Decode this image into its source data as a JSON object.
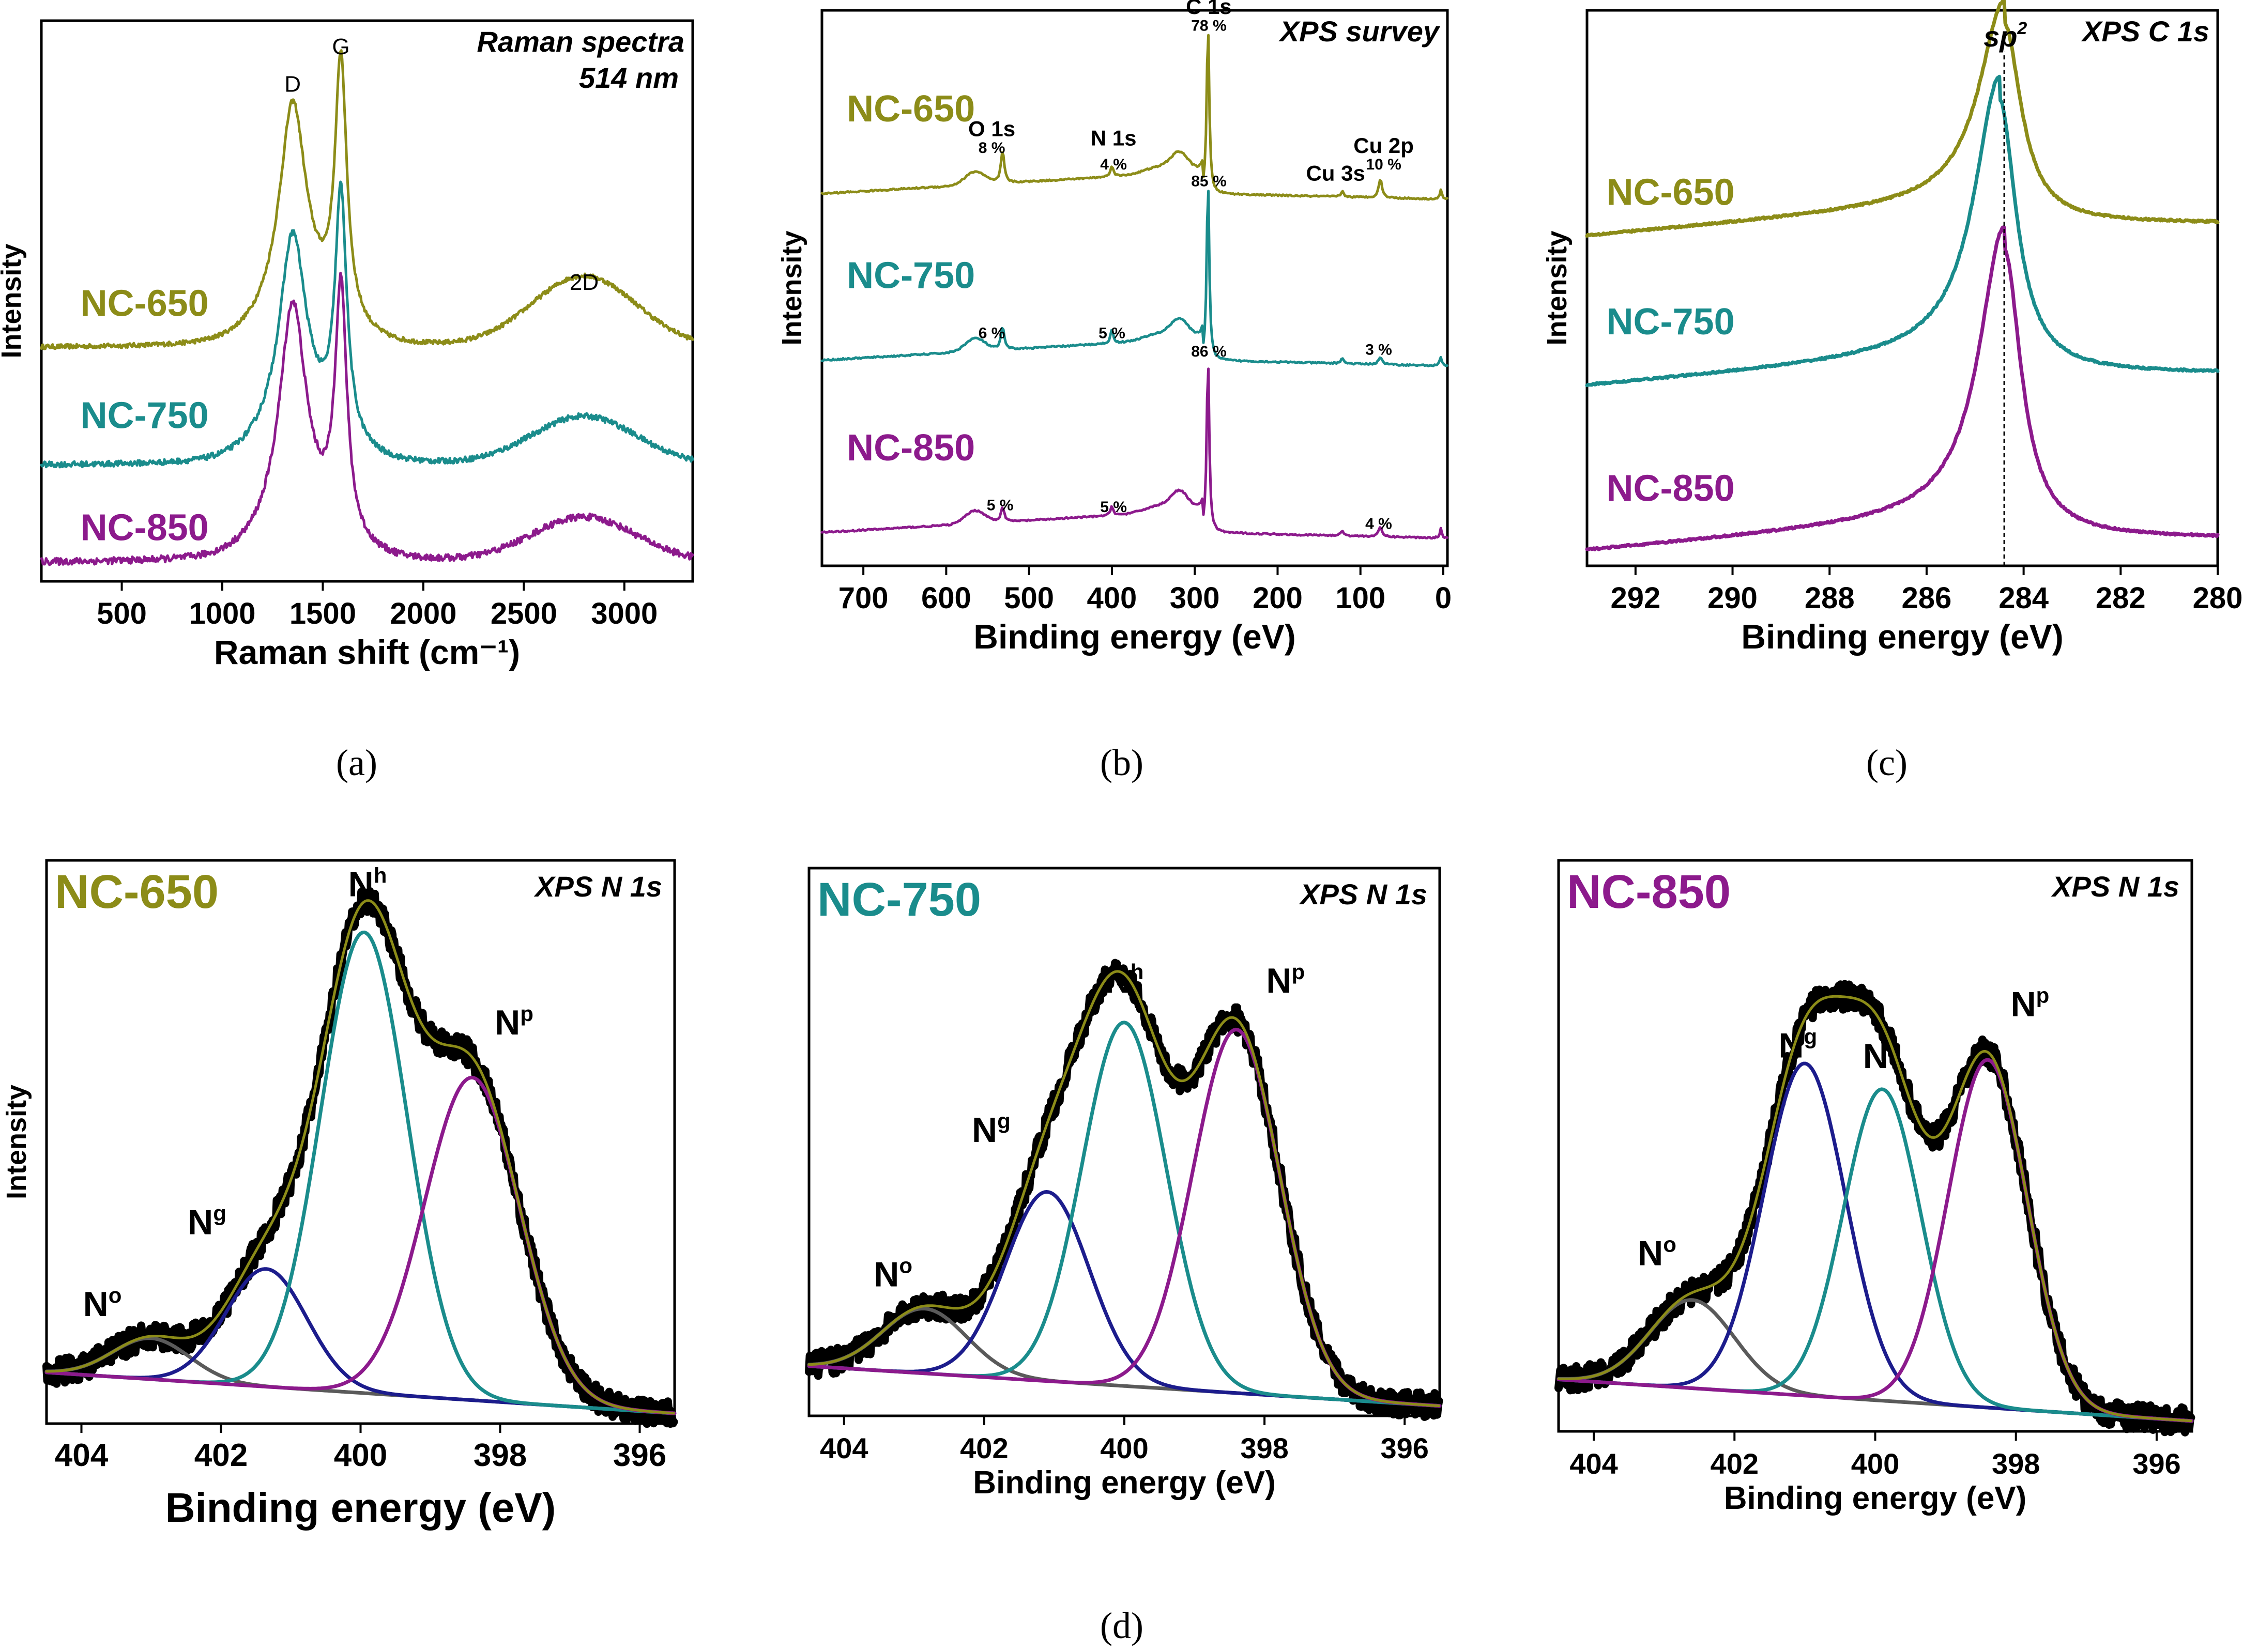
{
  "colors": {
    "nc650": "#8c8c18",
    "nc750": "#1a8c8c",
    "nc850": "#8c1a8c",
    "navy": "#1c1c8c",
    "gray": "#5a5a5a",
    "black": "#000000",
    "lightgray": "#9a9a9a"
  },
  "captions": {
    "a": "(a)",
    "b": "(b)",
    "c": "(c)",
    "d": "(d)"
  },
  "chart_data": [
    {
      "id": "a",
      "type": "line",
      "title": "Raman spectra",
      "subtitle": "514 nm",
      "xlabel": "Raman shift (cm⁻¹)",
      "ylabel": "Intensity",
      "xlim": [
        100,
        3340
      ],
      "ylim": [
        0,
        3.0
      ],
      "xticks": [
        500,
        1000,
        1500,
        2000,
        2500,
        3000
      ],
      "peak_labels": [
        {
          "text": "D",
          "x": 1350,
          "y": 2.62
        },
        {
          "text": "G",
          "x": 1590,
          "y": 2.82
        },
        {
          "text": "2D",
          "x": 2800,
          "y": 1.56
        }
      ],
      "series": [
        {
          "name": "NC-650",
          "color_key": "nc650",
          "offset": 1.25,
          "baseline": 0.0,
          "D": 1.12,
          "G": 1.38,
          "D2": 0.38,
          "noise": 0.012,
          "label_x": 0.06,
          "label_y": 1.42
        },
        {
          "name": "NC-750",
          "color_key": "nc750",
          "offset": 0.62,
          "baseline": 0.0,
          "D": 1.05,
          "G": 1.3,
          "D2": 0.26,
          "noise": 0.015,
          "label_x": 0.06,
          "label_y": 0.82
        },
        {
          "name": "NC-850",
          "color_key": "nc850",
          "offset": 0.1,
          "baseline": 0.0,
          "D": 1.2,
          "G": 1.32,
          "D2": 0.24,
          "noise": 0.018,
          "label_x": 0.06,
          "label_y": 0.22
        }
      ]
    },
    {
      "id": "b",
      "type": "line",
      "title": "XPS survey",
      "xlabel": "Binding energy (eV)",
      "ylabel": "Intensity",
      "xlim": [
        750,
        -5
      ],
      "ylim": [
        0,
        3.0
      ],
      "xticks": [
        700,
        600,
        500,
        400,
        300,
        200,
        100,
        0
      ],
      "series": [
        {
          "name": "NC-650",
          "color_key": "nc650",
          "offset": 1.95,
          "C1s": 0.92,
          "O1s": 0.17,
          "N1s": 0.06,
          "Cu2p": 0.1,
          "label_x": 720,
          "label_y": 2.4
        },
        {
          "name": "NC-750",
          "color_key": "nc750",
          "offset": 1.05,
          "C1s": 0.98,
          "O1s": 0.12,
          "N1s": 0.07,
          "Cu2p": 0.04,
          "label_x": 720,
          "label_y": 1.5
        },
        {
          "name": "NC-850",
          "color_key": "nc850",
          "offset": 0.12,
          "C1s": 0.95,
          "O1s": 0.08,
          "N1s": 0.05,
          "Cu2p": 0.05,
          "label_x": 720,
          "label_y": 0.57
        }
      ],
      "annotations": [
        {
          "text": "C 1s",
          "x": 283,
          "y": 2.98,
          "cls": "peak-label"
        },
        {
          "text": "78 %",
          "x": 283,
          "y": 2.89,
          "cls": "peak-small"
        },
        {
          "text": "O 1s",
          "x": 545,
          "y": 2.32,
          "cls": "peak-label"
        },
        {
          "text": "8 %",
          "x": 545,
          "y": 2.23,
          "cls": "peak-small"
        },
        {
          "text": "N 1s",
          "x": 398,
          "y": 2.27,
          "cls": "peak-label"
        },
        {
          "text": "4 %",
          "x": 398,
          "y": 2.14,
          "cls": "peak-small"
        },
        {
          "text": "Cu 3s",
          "x": 130,
          "y": 2.08,
          "cls": "peak-label"
        },
        {
          "text": "Cu 2p",
          "x": 72,
          "y": 2.23,
          "cls": "peak-label"
        },
        {
          "text": "10 %",
          "x": 72,
          "y": 2.14,
          "cls": "peak-small"
        },
        {
          "text": "85 %",
          "x": 283,
          "y": 2.05,
          "cls": "peak-small"
        },
        {
          "text": "6 %",
          "x": 545,
          "y": 1.23,
          "cls": "peak-small"
        },
        {
          "text": "5 %",
          "x": 400,
          "y": 1.23,
          "cls": "peak-small"
        },
        {
          "text": "3 %",
          "x": 78,
          "y": 1.14,
          "cls": "peak-small"
        },
        {
          "text": "86 %",
          "x": 283,
          "y": 1.13,
          "cls": "peak-small"
        },
        {
          "text": "5 %",
          "x": 535,
          "y": 0.3,
          "cls": "peak-small"
        },
        {
          "text": "5 %",
          "x": 398,
          "y": 0.29,
          "cls": "peak-small"
        },
        {
          "text": "4 %",
          "x": 78,
          "y": 0.2,
          "cls": "peak-small"
        }
      ]
    },
    {
      "id": "c",
      "type": "line",
      "title": "XPS C 1s",
      "marker_label": "sp",
      "marker_sup": "2",
      "marker_x": 284.4,
      "xlabel": "Binding energy (eV)",
      "ylabel": "Intensity",
      "xlim": [
        293,
        280
      ],
      "ylim": [
        0,
        3.0
      ],
      "xticks": [
        292,
        290,
        288,
        286,
        284,
        282,
        280
      ],
      "series": [
        {
          "name": "NC-650",
          "color_key": "nc650",
          "offset": 1.78,
          "peak_x": 284.4,
          "peak": 1.08,
          "label_x": 292.6,
          "label_y": 1.95
        },
        {
          "name": "NC-750",
          "color_key": "nc750",
          "offset": 0.97,
          "peak_x": 284.5,
          "peak": 1.48,
          "label_x": 292.6,
          "label_y": 1.25
        },
        {
          "name": "NC-850",
          "color_key": "nc850",
          "offset": 0.08,
          "peak_x": 284.4,
          "peak": 1.56,
          "label_x": 292.6,
          "label_y": 0.35
        }
      ]
    },
    {
      "id": "d1",
      "type": "line",
      "sample": "NC-650",
      "sample_color_key": "nc650",
      "title": "XPS N 1s",
      "xlabel": "Binding energy (eV)",
      "ylabel": "Intensity",
      "xlim": [
        404.5,
        395.5
      ],
      "ylim": [
        0,
        1.1
      ],
      "xticks": [
        404,
        402,
        400,
        398,
        396
      ],
      "components": [
        {
          "name": "N",
          "sup": "o",
          "center": 403.0,
          "amp": 0.08,
          "width": 0.55,
          "color_key": "gray",
          "label_x": 403.7,
          "label_y": 0.21
        },
        {
          "name": "N",
          "sup": "g",
          "center": 401.35,
          "amp": 0.23,
          "width": 0.58,
          "color_key": "navy",
          "label_x": 402.2,
          "label_y": 0.37
        },
        {
          "name": "N",
          "sup": "h",
          "center": 399.95,
          "amp": 0.9,
          "width": 0.62,
          "color_key": "nc750",
          "label_x": 399.9,
          "label_y": 1.03
        },
        {
          "name": "N",
          "sup": "p",
          "center": 398.4,
          "amp": 0.63,
          "width": 0.68,
          "color_key": "nc850",
          "label_x": 397.8,
          "label_y": 0.76
        }
      ]
    },
    {
      "id": "d2",
      "type": "line",
      "sample": "NC-750",
      "sample_color_key": "nc750",
      "title": "XPS N 1s",
      "xlabel": "Binding energy (eV)",
      "ylabel": "",
      "xlim": [
        404.5,
        395.5
      ],
      "ylim": [
        0,
        1.1
      ],
      "xticks": [
        404,
        402,
        400,
        398,
        396
      ],
      "components": [
        {
          "name": "N",
          "sup": "o",
          "center": 402.85,
          "amp": 0.13,
          "width": 0.6,
          "color_key": "gray",
          "label_x": 403.3,
          "label_y": 0.26
        },
        {
          "name": "N",
          "sup": "g",
          "center": 401.1,
          "amp": 0.38,
          "width": 0.6,
          "color_key": "navy",
          "label_x": 401.9,
          "label_y": 0.55
        },
        {
          "name": "N",
          "sup": "h",
          "center": 400.0,
          "amp": 0.73,
          "width": 0.6,
          "color_key": "nc750",
          "label_x": 400.0,
          "label_y": 0.85
        },
        {
          "name": "N",
          "sup": "p",
          "center": 398.4,
          "amp": 0.73,
          "width": 0.62,
          "color_key": "nc850",
          "label_x": 397.7,
          "label_y": 0.85
        }
      ]
    },
    {
      "id": "d3",
      "type": "line",
      "sample": "NC-850",
      "sample_color_key": "nc850",
      "title": "XPS N 1s",
      "xlabel": "Binding energy (eV)",
      "ylabel": "",
      "xlim": [
        404.5,
        395.5
      ],
      "ylim": [
        0,
        1.1
      ],
      "xticks": [
        404,
        402,
        400,
        398,
        396
      ],
      "components": [
        {
          "name": "N",
          "sup": "o",
          "center": 402.6,
          "amp": 0.17,
          "width": 0.6,
          "color_key": "gray",
          "label_x": 403.1,
          "label_y": 0.32
        },
        {
          "name": "N",
          "sup": "g",
          "center": 401.0,
          "amp": 0.64,
          "width": 0.58,
          "color_key": "navy",
          "label_x": 401.1,
          "label_y": 0.72
        },
        {
          "name": "N",
          "sup": "h",
          "center": 399.9,
          "amp": 0.6,
          "width": 0.55,
          "color_key": "nc750",
          "label_x": 399.9,
          "label_y": 0.7
        },
        {
          "name": "N",
          "sup": "p",
          "center": 398.4,
          "amp": 0.67,
          "width": 0.56,
          "color_key": "nc850",
          "label_x": 397.8,
          "label_y": 0.8
        }
      ]
    }
  ]
}
